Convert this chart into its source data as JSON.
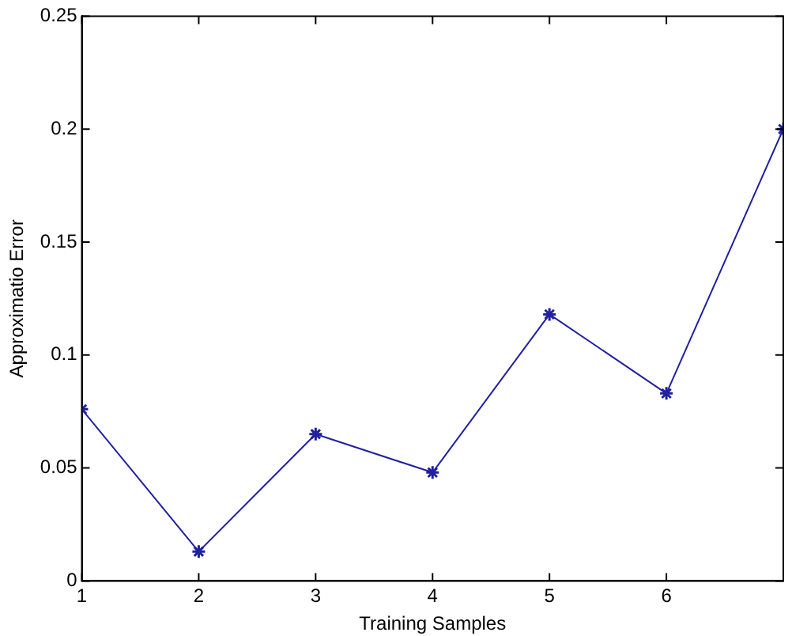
{
  "chart_data": {
    "type": "line",
    "xlabel": "Training Samples",
    "ylabel": "Approximatio Error",
    "x": [
      1,
      2,
      3,
      4,
      5,
      6,
      7
    ],
    "series": [
      {
        "color": "#2020a0",
        "values": [
          0.076,
          0.013,
          0.065,
          0.048,
          0.118,
          0.083,
          0.2
        ]
      }
    ],
    "xlim": [
      1,
      7
    ],
    "xticks": [
      1,
      2,
      3,
      4,
      5,
      6,
      {
        "value": 7,
        "label": null
      }
    ],
    "ylim": [
      0,
      0.25
    ],
    "yticks": [
      0,
      0.05,
      0.1,
      0.15,
      0.2,
      0.25
    ],
    "grid": false,
    "legend": false,
    "marker": "cross",
    "line_style": "solid"
  }
}
